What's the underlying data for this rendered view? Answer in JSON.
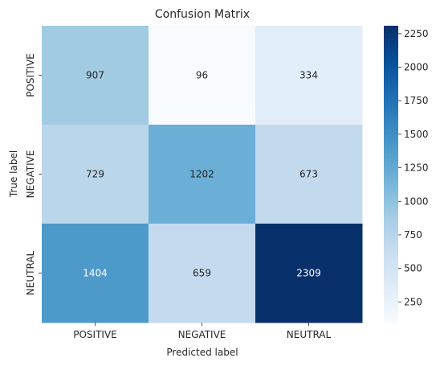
{
  "chart_data": {
    "type": "heatmap",
    "title": "Confusion Matrix",
    "xlabel": "Predicted label",
    "ylabel": "True label",
    "x_categories": [
      "POSITIVE",
      "NEGATIVE",
      "NEUTRAL"
    ],
    "y_categories": [
      "POSITIVE",
      "NEGATIVE",
      "NEUTRAL"
    ],
    "values": [
      [
        907,
        96,
        334
      ],
      [
        729,
        1202,
        673
      ],
      [
        1404,
        659,
        2309
      ]
    ],
    "colormap": "Blues",
    "colorbar": {
      "min": 96,
      "max": 2309,
      "ticks": [
        250,
        500,
        750,
        1000,
        1250,
        1500,
        1750,
        2000,
        2250
      ],
      "tick_labels": [
        "250",
        "500",
        "750",
        "1000",
        "1250",
        "1500",
        "1750",
        "2000",
        "2250"
      ]
    },
    "grid": false,
    "legend": "colorbar-right"
  }
}
